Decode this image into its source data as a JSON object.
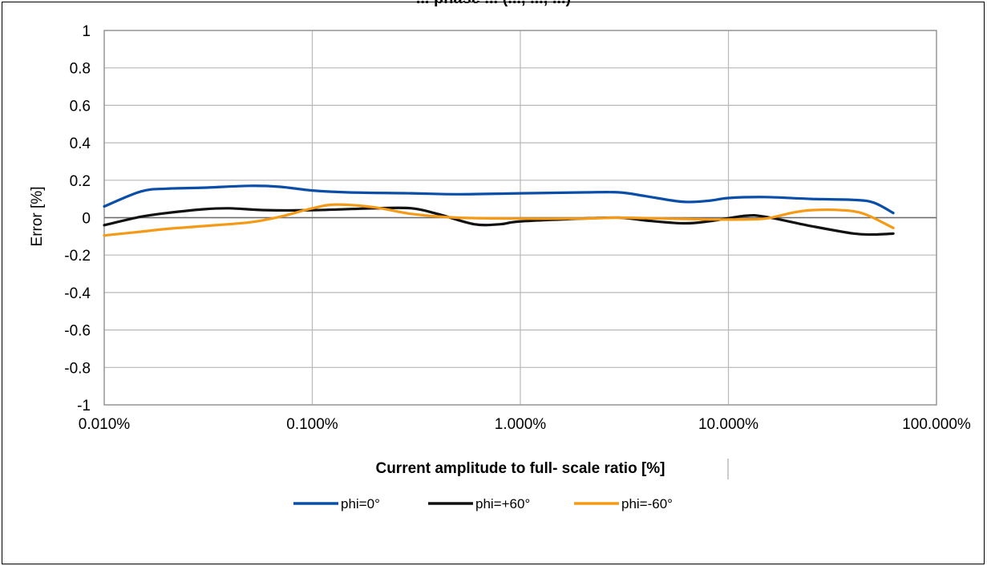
{
  "chart_data": {
    "type": "line",
    "title": "... phase ... (..., ..., ...)",
    "xlabel": "Current  amplitude to  full- scale ratio [%]",
    "ylabel": "Error  [%]",
    "x_scale": "log",
    "xlim": [
      0.01,
      100
    ],
    "ylim": [
      -1,
      1
    ],
    "grid": true,
    "legend_position": "bottom",
    "x_ticks": [
      {
        "value": 0.01,
        "label": "0.010%"
      },
      {
        "value": 0.1,
        "label": "0.100%"
      },
      {
        "value": 1,
        "label": "1.000%"
      },
      {
        "value": 10,
        "label": "10.000%"
      },
      {
        "value": 100,
        "label": "100.000%"
      }
    ],
    "y_ticks": [
      {
        "value": 1,
        "label": "1"
      },
      {
        "value": 0.8,
        "label": "0.8"
      },
      {
        "value": 0.6,
        "label": "0.6"
      },
      {
        "value": 0.4,
        "label": "0.4"
      },
      {
        "value": 0.2,
        "label": "0.2"
      },
      {
        "value": 0,
        "label": "0"
      },
      {
        "value": -0.2,
        "label": "-0.2"
      },
      {
        "value": -0.4,
        "label": "-0.4"
      },
      {
        "value": -0.6,
        "label": "-0.6"
      },
      {
        "value": -0.8,
        "label": "-0.8"
      },
      {
        "value": -1,
        "label": "-1"
      }
    ],
    "series": [
      {
        "name": "phi=0°",
        "color": "#0b4ea8",
        "points": [
          [
            0.01,
            0.06
          ],
          [
            0.015,
            0.14
          ],
          [
            0.02,
            0.155
          ],
          [
            0.03,
            0.16
          ],
          [
            0.05,
            0.17
          ],
          [
            0.07,
            0.165
          ],
          [
            0.1,
            0.145
          ],
          [
            0.15,
            0.135
          ],
          [
            0.3,
            0.13
          ],
          [
            0.5,
            0.125
          ],
          [
            1,
            0.13
          ],
          [
            2,
            0.135
          ],
          [
            3,
            0.135
          ],
          [
            4,
            0.115
          ],
          [
            6,
            0.085
          ],
          [
            8,
            0.09
          ],
          [
            10,
            0.105
          ],
          [
            15,
            0.11
          ],
          [
            25,
            0.1
          ],
          [
            40,
            0.095
          ],
          [
            50,
            0.08
          ],
          [
            62,
            0.025
          ]
        ]
      },
      {
        "name": "phi=+60°",
        "color": "#111111",
        "points": [
          [
            0.01,
            -0.04
          ],
          [
            0.015,
            0.005
          ],
          [
            0.02,
            0.025
          ],
          [
            0.03,
            0.045
          ],
          [
            0.04,
            0.05
          ],
          [
            0.06,
            0.04
          ],
          [
            0.1,
            0.04
          ],
          [
            0.2,
            0.05
          ],
          [
            0.3,
            0.05
          ],
          [
            0.4,
            0.02
          ],
          [
            0.6,
            -0.035
          ],
          [
            0.8,
            -0.035
          ],
          [
            1,
            -0.02
          ],
          [
            2,
            -0.005
          ],
          [
            3,
            0.0
          ],
          [
            4,
            -0.015
          ],
          [
            6,
            -0.03
          ],
          [
            8,
            -0.02
          ],
          [
            12,
            0.01
          ],
          [
            15,
            0.005
          ],
          [
            25,
            -0.045
          ],
          [
            40,
            -0.085
          ],
          [
            50,
            -0.09
          ],
          [
            62,
            -0.085
          ]
        ]
      },
      {
        "name": "phi=-60°",
        "color": "#f59a16",
        "points": [
          [
            0.01,
            -0.095
          ],
          [
            0.015,
            -0.075
          ],
          [
            0.02,
            -0.06
          ],
          [
            0.03,
            -0.045
          ],
          [
            0.05,
            -0.025
          ],
          [
            0.07,
            0.005
          ],
          [
            0.1,
            0.05
          ],
          [
            0.13,
            0.07
          ],
          [
            0.2,
            0.055
          ],
          [
            0.3,
            0.02
          ],
          [
            0.5,
            0.0
          ],
          [
            1,
            -0.005
          ],
          [
            2,
            -0.005
          ],
          [
            3,
            0.0
          ],
          [
            5,
            -0.005
          ],
          [
            10,
            -0.01
          ],
          [
            15,
            -0.005
          ],
          [
            20,
            0.025
          ],
          [
            25,
            0.04
          ],
          [
            35,
            0.04
          ],
          [
            45,
            0.02
          ],
          [
            62,
            -0.055
          ]
        ]
      }
    ]
  }
}
